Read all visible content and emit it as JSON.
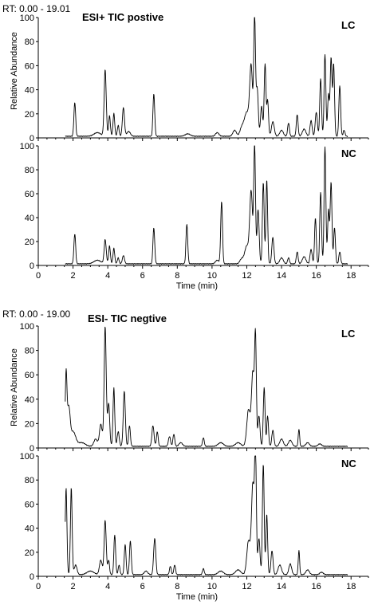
{
  "chart_data": [
    {
      "type": "line",
      "figure_label": "RT: 0.00 - 19.01",
      "title": "ESI+ TIC postive",
      "ylabel": "Relative Abundance",
      "xlabel": "Time (min)",
      "xlim": [
        0,
        19
      ],
      "ylim": [
        0,
        100
      ],
      "x_ticks": [
        0,
        2,
        4,
        6,
        8,
        10,
        12,
        14,
        16,
        18
      ],
      "y_ticks": [
        0,
        20,
        40,
        60,
        80,
        100
      ],
      "series": [
        {
          "name": "LC",
          "baseline": 1,
          "peaks": [
            [
              2.1,
              28,
              0.05
            ],
            [
              3.4,
              3,
              0.2
            ],
            [
              3.85,
              55,
              0.06
            ],
            [
              4.1,
              17,
              0.05
            ],
            [
              4.35,
              19,
              0.05
            ],
            [
              4.6,
              9,
              0.05
            ],
            [
              4.9,
              24,
              0.06
            ],
            [
              5.2,
              4,
              0.1
            ],
            [
              6.65,
              35,
              0.05
            ],
            [
              8.6,
              2,
              0.15
            ],
            [
              10.3,
              3,
              0.1
            ],
            [
              11.3,
              5,
              0.1
            ],
            [
              11.7,
              6,
              0.1
            ],
            [
              12.0,
              20,
              0.15
            ],
            [
              12.25,
              55,
              0.08
            ],
            [
              12.45,
              98,
              0.05
            ],
            [
              12.6,
              40,
              0.06
            ],
            [
              12.85,
              25,
              0.06
            ],
            [
              13.05,
              60,
              0.05
            ],
            [
              13.2,
              30,
              0.05
            ],
            [
              13.5,
              12,
              0.08
            ],
            [
              14.0,
              5,
              0.1
            ],
            [
              14.4,
              11,
              0.05
            ],
            [
              14.9,
              18,
              0.05
            ],
            [
              15.3,
              6,
              0.1
            ],
            [
              15.7,
              13,
              0.06
            ],
            [
              16.0,
              20,
              0.06
            ],
            [
              16.25,
              48,
              0.05
            ],
            [
              16.5,
              68,
              0.05
            ],
            [
              16.7,
              35,
              0.05
            ],
            [
              16.85,
              65,
              0.05
            ],
            [
              17.0,
              60,
              0.05
            ],
            [
              17.35,
              42,
              0.05
            ],
            [
              17.6,
              5,
              0.05
            ]
          ]
        },
        {
          "name": "NC",
          "baseline": 1,
          "peaks": [
            [
              2.1,
              25,
              0.05
            ],
            [
              3.4,
              3,
              0.2
            ],
            [
              3.85,
              20,
              0.06
            ],
            [
              4.1,
              15,
              0.05
            ],
            [
              4.35,
              13,
              0.05
            ],
            [
              4.6,
              5,
              0.05
            ],
            [
              4.9,
              7,
              0.06
            ],
            [
              6.65,
              30,
              0.05
            ],
            [
              8.55,
              33,
              0.05
            ],
            [
              10.3,
              3,
              0.1
            ],
            [
              10.55,
              52,
              0.05
            ],
            [
              11.7,
              4,
              0.1
            ],
            [
              12.0,
              15,
              0.12
            ],
            [
              12.25,
              60,
              0.08
            ],
            [
              12.45,
              98,
              0.05
            ],
            [
              12.65,
              45,
              0.06
            ],
            [
              12.95,
              68,
              0.05
            ],
            [
              13.15,
              70,
              0.05
            ],
            [
              13.5,
              22,
              0.06
            ],
            [
              14.0,
              5,
              0.1
            ],
            [
              14.4,
              5,
              0.05
            ],
            [
              14.9,
              10,
              0.05
            ],
            [
              15.3,
              6,
              0.1
            ],
            [
              15.7,
              12,
              0.06
            ],
            [
              15.95,
              38,
              0.05
            ],
            [
              16.25,
              60,
              0.05
            ],
            [
              16.5,
              98,
              0.05
            ],
            [
              16.7,
              45,
              0.05
            ],
            [
              16.85,
              68,
              0.05
            ],
            [
              17.05,
              30,
              0.05
            ],
            [
              17.35,
              10,
              0.05
            ]
          ]
        }
      ]
    },
    {
      "type": "line",
      "figure_label": "RT: 0.00 - 19.00",
      "title": "ESI- TIC negtive",
      "ylabel": "Relative Abundance",
      "xlabel": "Time (min)",
      "xlim": [
        0,
        19
      ],
      "ylim": [
        0,
        100
      ],
      "x_ticks": [
        0,
        2,
        4,
        6,
        8,
        10,
        12,
        14,
        16,
        18
      ],
      "y_ticks": [
        0,
        20,
        40,
        60,
        80,
        100
      ],
      "series": [
        {
          "name": "LC",
          "baseline": 1,
          "peaks": [
            [
              1.6,
              58,
              0.05
            ],
            [
              1.75,
              30,
              0.08
            ],
            [
              2.0,
              12,
              0.15
            ],
            [
              2.5,
              3,
              0.2
            ],
            [
              3.3,
              6,
              0.1
            ],
            [
              3.6,
              18,
              0.08
            ],
            [
              3.85,
              98,
              0.06
            ],
            [
              4.05,
              35,
              0.06
            ],
            [
              4.35,
              48,
              0.05
            ],
            [
              4.6,
              12,
              0.06
            ],
            [
              4.95,
              45,
              0.06
            ],
            [
              5.25,
              17,
              0.05
            ],
            [
              6.6,
              17,
              0.06
            ],
            [
              6.85,
              12,
              0.05
            ],
            [
              7.55,
              8,
              0.06
            ],
            [
              7.8,
              10,
              0.05
            ],
            [
              8.2,
              3,
              0.1
            ],
            [
              9.5,
              7,
              0.05
            ],
            [
              10.5,
              3,
              0.15
            ],
            [
              11.5,
              3,
              0.15
            ],
            [
              12.1,
              30,
              0.1
            ],
            [
              12.35,
              60,
              0.08
            ],
            [
              12.5,
              85,
              0.05
            ],
            [
              12.7,
              25,
              0.06
            ],
            [
              13.0,
              48,
              0.05
            ],
            [
              13.2,
              25,
              0.05
            ],
            [
              13.5,
              13,
              0.06
            ],
            [
              14.0,
              6,
              0.1
            ],
            [
              14.5,
              5,
              0.1
            ],
            [
              15.0,
              14,
              0.04
            ],
            [
              15.5,
              3,
              0.1
            ],
            [
              16.2,
              2,
              0.1
            ]
          ]
        },
        {
          "name": "NC",
          "baseline": 1,
          "peaks": [
            [
              1.6,
              72,
              0.05
            ],
            [
              1.9,
              72,
              0.05
            ],
            [
              2.15,
              8,
              0.08
            ],
            [
              3.0,
              3,
              0.2
            ],
            [
              3.6,
              12,
              0.08
            ],
            [
              3.85,
              45,
              0.06
            ],
            [
              4.05,
              12,
              0.05
            ],
            [
              4.4,
              33,
              0.05
            ],
            [
              4.65,
              8,
              0.05
            ],
            [
              5.0,
              25,
              0.05
            ],
            [
              5.3,
              28,
              0.05
            ],
            [
              6.2,
              3,
              0.1
            ],
            [
              6.7,
              30,
              0.06
            ],
            [
              7.6,
              7,
              0.05
            ],
            [
              7.85,
              8,
              0.05
            ],
            [
              9.5,
              5,
              0.05
            ],
            [
              10.5,
              3,
              0.15
            ],
            [
              11.5,
              4,
              0.15
            ],
            [
              12.1,
              28,
              0.1
            ],
            [
              12.35,
              75,
              0.08
            ],
            [
              12.5,
              98,
              0.05
            ],
            [
              12.7,
              30,
              0.06
            ],
            [
              12.95,
              92,
              0.05
            ],
            [
              13.15,
              50,
              0.05
            ],
            [
              13.45,
              20,
              0.06
            ],
            [
              13.9,
              8,
              0.1
            ],
            [
              14.5,
              9,
              0.08
            ],
            [
              15.0,
              20,
              0.04
            ],
            [
              15.5,
              4,
              0.1
            ],
            [
              16.3,
              2,
              0.1
            ]
          ]
        }
      ]
    }
  ]
}
